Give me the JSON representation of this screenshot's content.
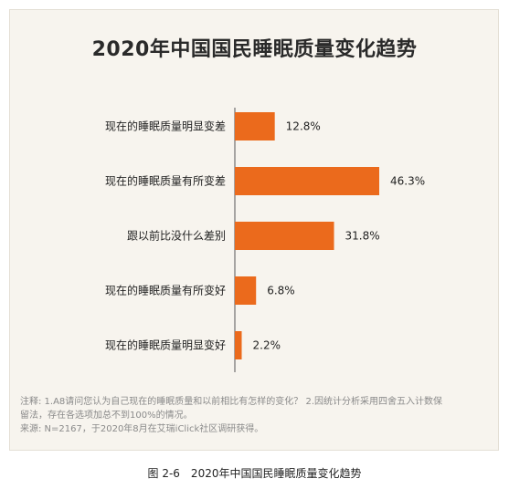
{
  "title": "2020年中国国民睡眠质量变化趋势",
  "notes": {
    "line1": "注释: 1.A8请问您认为自己现在的睡眠质量和以前相比有怎样的变化？ 2.因统计分析采用四舍五入计数保",
    "line2": "留法，存在各选项加总不到100%的情况。",
    "line3": "来源: N=2167，于2020年8月在艾瑞iClick社区调研获得。"
  },
  "caption": "图 2-6　2020年中国国民睡眠质量变化趋势",
  "colors": {
    "bar": "#eb6a1c",
    "axis": "#555555",
    "panel": "#f7f4ee"
  },
  "chart_data": {
    "type": "bar",
    "orientation": "horizontal",
    "title": "2020年中国国民睡眠质量变化趋势",
    "categories": [
      "现在的睡眠质量明显变差",
      "现在的睡眠质量有所变差",
      "跟以前比没什么差别",
      "现在的睡眠质量有所变好",
      "现在的睡眠质量明显变好"
    ],
    "values": [
      12.8,
      46.3,
      31.8,
      6.8,
      2.2
    ],
    "value_labels": [
      "12.8%",
      "46.3%",
      "31.8%",
      "6.8%",
      "2.2%"
    ],
    "xlim": [
      0,
      46.3
    ],
    "grid": false,
    "legend": "none"
  }
}
